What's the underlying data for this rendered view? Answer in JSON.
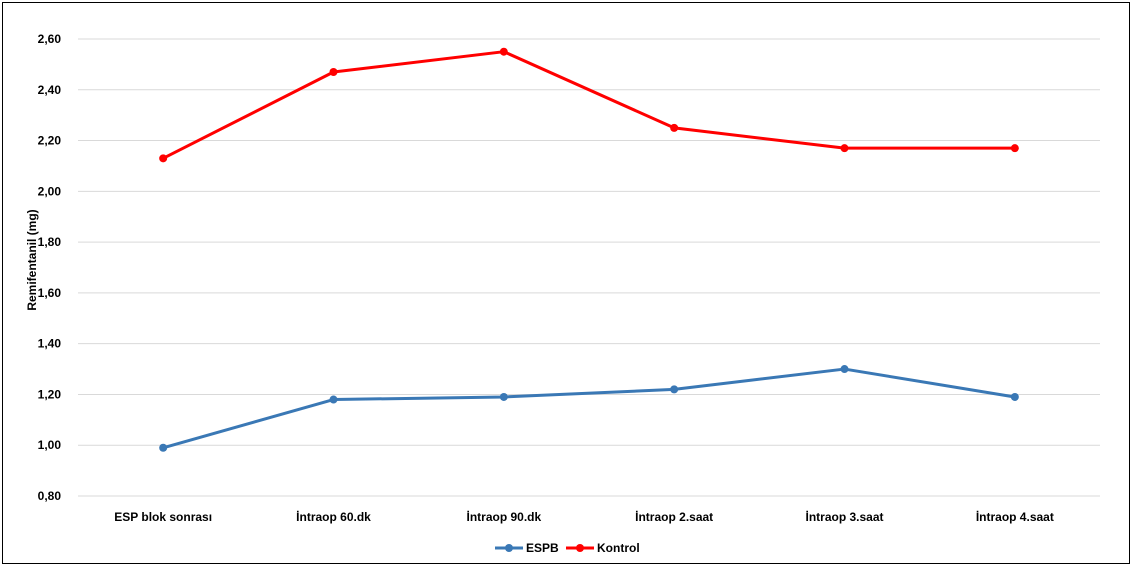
{
  "chart_data": {
    "type": "line",
    "title": "",
    "xlabel": "",
    "ylabel": "Remifentanil (mg)",
    "categories": [
      "ESP blok sonrası",
      "İntraop 60.dk",
      "İntraop 90.dk",
      "İntraop 2.saat",
      "İntraop 3.saat",
      "İntraop 4.saat"
    ],
    "ylim": [
      0.8,
      2.6
    ],
    "yticks": [
      "0,80",
      "1,00",
      "1,20",
      "1,40",
      "1,60",
      "1,80",
      "2,00",
      "2,20",
      "2,40",
      "2,60"
    ],
    "grid": true,
    "legend_position": "bottom",
    "series": [
      {
        "name": "ESPB",
        "color": "#3a78b5",
        "values": [
          0.99,
          1.18,
          1.19,
          1.22,
          1.3,
          1.19
        ]
      },
      {
        "name": "Kontrol",
        "color": "#ff0000",
        "values": [
          2.13,
          2.47,
          2.55,
          2.25,
          2.17,
          2.17
        ]
      }
    ]
  }
}
